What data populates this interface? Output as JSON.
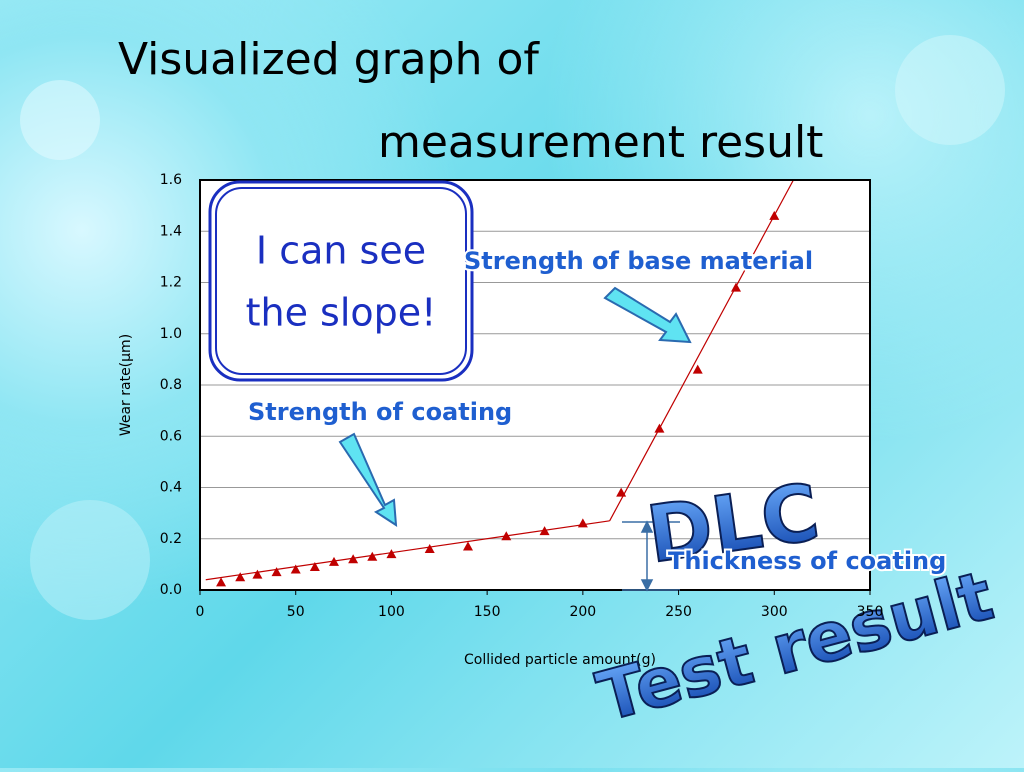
{
  "slide_title": {
    "line1": "Visualized graph of",
    "line2": "measurement result"
  },
  "callout": {
    "lines": [
      "I can see",
      "the slope!"
    ]
  },
  "chart_data": {
    "type": "scatter",
    "x_label": "Collided particle amount(g)",
    "y_label": "Wear rate(μm)",
    "xlim": [
      0,
      350
    ],
    "xticks": [
      0,
      50,
      100,
      150,
      200,
      250,
      300,
      350
    ],
    "ylim": [
      0,
      1.6
    ],
    "yticks": [
      {
        "value": 0,
        "label": "0.0"
      },
      {
        "value": 0.2,
        "label": "0.2"
      },
      {
        "value": 0.4,
        "label": "0.4"
      },
      {
        "value": 0.6,
        "label": "0.6"
      },
      {
        "value": 0.8,
        "label": "0.8"
      },
      {
        "value": 1.0,
        "label": "1.0"
      },
      {
        "value": 1.2,
        "label": "1.2"
      },
      {
        "value": 1.4,
        "label": "1.4"
      },
      {
        "value": 1.6,
        "label": "1.6"
      }
    ],
    "grid": true,
    "color": "#c00000",
    "x": [
      11,
      21,
      30,
      40,
      50,
      60,
      70,
      80,
      90,
      100,
      120,
      140,
      160,
      180,
      200,
      220,
      240,
      260,
      280,
      300
    ],
    "values": [
      0.03,
      0.05,
      0.06,
      0.07,
      0.08,
      0.09,
      0.11,
      0.12,
      0.13,
      0.14,
      0.16,
      0.17,
      0.21,
      0.23,
      0.26,
      0.38,
      0.63,
      0.86,
      1.18,
      1.46
    ],
    "trend_lines": [
      {
        "x": [
          3,
          214
        ],
        "y": [
          0.04,
          0.27
        ]
      },
      {
        "x": [
          214,
          310
        ],
        "y": [
          0.27,
          1.6
        ]
      }
    ],
    "annotations": {
      "base": "Strength of base material",
      "coating": "Strength of coating",
      "thickness": "Thickness of coating",
      "dlc": "DLC",
      "test": "Test result"
    }
  }
}
